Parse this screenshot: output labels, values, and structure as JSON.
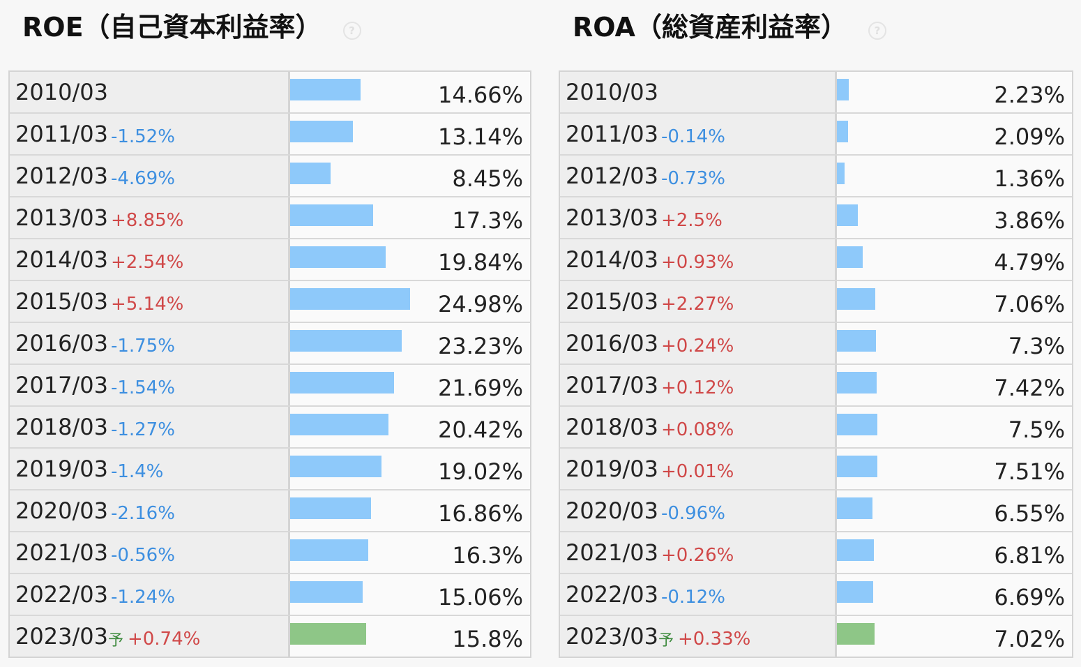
{
  "chart_data": [
    {
      "type": "bar",
      "title": "ROE（自己資本利益率）",
      "help_icon": "question-circle-icon",
      "categories": [
        "2010/03",
        "2011/03",
        "2012/03",
        "2013/03",
        "2014/03",
        "2015/03",
        "2016/03",
        "2017/03",
        "2018/03",
        "2019/03",
        "2020/03",
        "2021/03",
        "2022/03",
        "2023/03"
      ],
      "values": [
        14.66,
        13.14,
        8.45,
        17.3,
        19.84,
        24.98,
        23.23,
        21.69,
        20.42,
        19.02,
        16.86,
        16.3,
        15.06,
        15.8
      ],
      "value_labels": [
        "14.66%",
        "13.14%",
        "8.45%",
        "17.3%",
        "19.84%",
        "24.98%",
        "23.23%",
        "21.69%",
        "20.42%",
        "19.02%",
        "16.86%",
        "16.3%",
        "15.06%",
        "15.8%"
      ],
      "changes": [
        "",
        "-1.52%",
        "-4.69%",
        "+8.85%",
        "+2.54%",
        "+5.14%",
        "-1.75%",
        "-1.54%",
        "-1.27%",
        "-1.4%",
        "-2.16%",
        "-0.56%",
        "-1.24%",
        "+0.74%"
      ],
      "forecast_flags": [
        false,
        false,
        false,
        false,
        false,
        false,
        false,
        false,
        false,
        false,
        false,
        false,
        false,
        true
      ],
      "forecast_marker": "予",
      "xlim": [
        0,
        25
      ],
      "colors": {
        "actual": "#8ec9fa",
        "forecast": "#8ec687",
        "up": "#d04848",
        "down": "#3d8fe0"
      }
    },
    {
      "type": "bar",
      "title": "ROA（総資産利益率）",
      "help_icon": "question-circle-icon",
      "categories": [
        "2010/03",
        "2011/03",
        "2012/03",
        "2013/03",
        "2014/03",
        "2015/03",
        "2016/03",
        "2017/03",
        "2018/03",
        "2019/03",
        "2020/03",
        "2021/03",
        "2022/03",
        "2023/03"
      ],
      "values": [
        2.23,
        2.09,
        1.36,
        3.86,
        4.79,
        7.06,
        7.3,
        7.42,
        7.5,
        7.51,
        6.55,
        6.81,
        6.69,
        7.02
      ],
      "value_labels": [
        "2.23%",
        "2.09%",
        "1.36%",
        "3.86%",
        "4.79%",
        "7.06%",
        "7.3%",
        "7.42%",
        "7.5%",
        "7.51%",
        "6.55%",
        "6.81%",
        "6.69%",
        "7.02%"
      ],
      "changes": [
        "",
        "-0.14%",
        "-0.73%",
        "+2.5%",
        "+0.93%",
        "+2.27%",
        "+0.24%",
        "+0.12%",
        "+0.08%",
        "+0.01%",
        "-0.96%",
        "+0.26%",
        "-0.12%",
        "+0.33%"
      ],
      "forecast_flags": [
        false,
        false,
        false,
        false,
        false,
        false,
        false,
        false,
        false,
        false,
        false,
        false,
        false,
        true
      ],
      "forecast_marker": "予",
      "xlim": [
        0,
        25
      ],
      "colors": {
        "actual": "#8ec9fa",
        "forecast": "#8ec687",
        "up": "#d04848",
        "down": "#3d8fe0"
      }
    }
  ]
}
